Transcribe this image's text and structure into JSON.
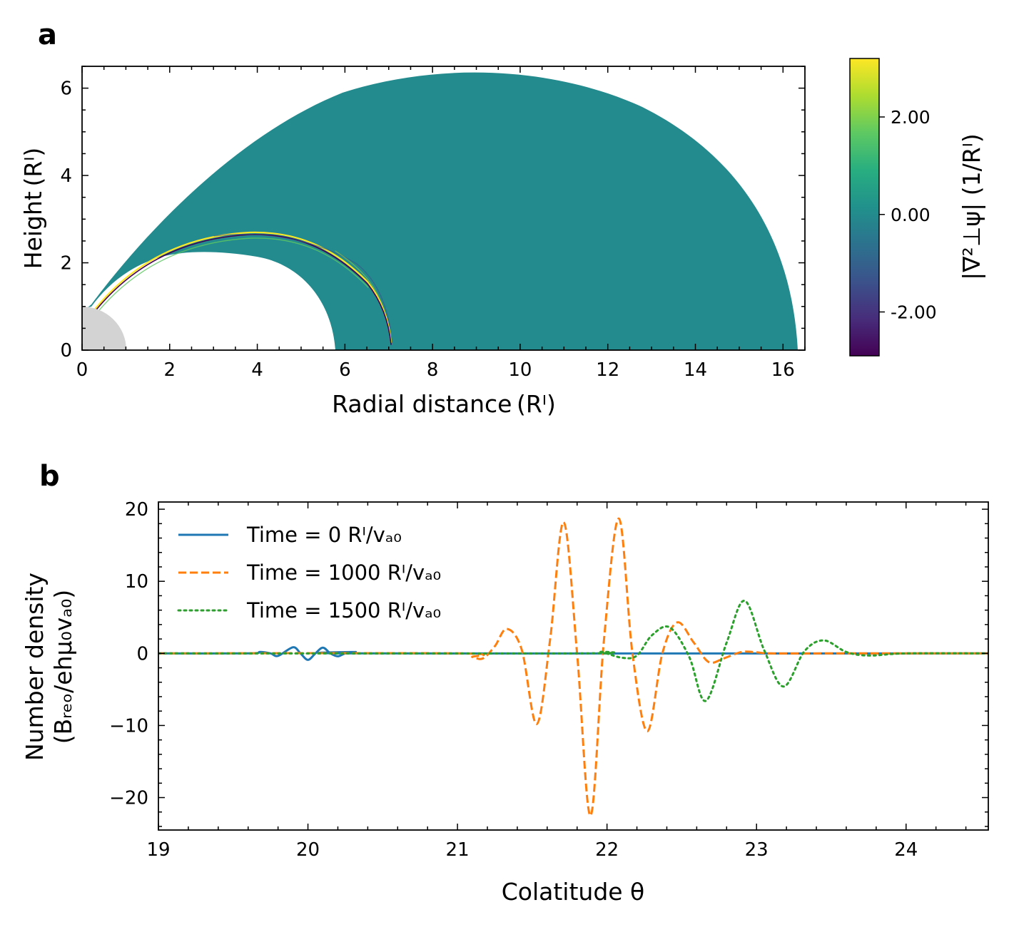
{
  "panel_a": {
    "label": "a",
    "xlabel": "Radial distance (Rᴵ)",
    "ylabel": "Height (Rᴵ)",
    "colorbar_label": "|∇²⊥ψ| (1/Rᴵ)",
    "colorbar_ticks": [
      "2.00",
      "0.00",
      "-2.00"
    ]
  },
  "panel_b": {
    "label": "b",
    "xlabel": "Colatitude θ",
    "ylabel_line1": "Number density",
    "ylabel_line2": "(Bᵣₑₒ/ehμ₀vₐ₀)"
  },
  "chart_data": [
    {
      "type": "heatmap",
      "xlim": [
        0,
        16.5
      ],
      "ylim": [
        0,
        6.5
      ],
      "x_ticks": [
        0,
        2,
        4,
        6,
        8,
        10,
        12,
        14,
        16
      ],
      "y_ticks": [
        0,
        2,
        4,
        6
      ],
      "colormap": "viridis",
      "colorbar_range": [
        -2.9,
        3.2
      ],
      "colorbar_ticks": [
        2,
        0,
        -2
      ],
      "background_value": 0.0,
      "domain_fill": "#238a8d",
      "planet_fill": "#d3d3d3",
      "grid": false
    },
    {
      "type": "line",
      "xlim": [
        19,
        24.55
      ],
      "ylim": [
        -24.5,
        21
      ],
      "x_ticks": [
        19,
        20,
        21,
        22,
        23,
        24
      ],
      "y_ticks": [
        20,
        10,
        0,
        -10,
        -20
      ],
      "grid": false,
      "legend_position": "top-left",
      "series": [
        {
          "name": "Time = 0 Rᴵ/vₐ₀",
          "color": "#1f77b4",
          "style": "solid",
          "x": [
            19.0,
            19.6,
            19.68,
            19.75,
            19.8,
            19.9,
            19.95,
            20.0,
            20.05,
            20.1,
            20.15,
            20.2,
            20.25,
            20.32,
            20.4,
            24.55
          ],
          "y": [
            0,
            0,
            0.2,
            0,
            -0.35,
            0.85,
            0,
            -0.9,
            0,
            0.8,
            0,
            -0.4,
            0,
            0.2,
            0,
            0
          ]
        },
        {
          "name": "Time = 1000 Rᴵ/vₐ₀",
          "color": "#ff7f0e",
          "style": "dashed",
          "x": [
            19.0,
            21.0,
            21.1,
            21.17,
            21.25,
            21.33,
            21.43,
            21.53,
            21.62,
            21.71,
            21.8,
            21.89,
            21.98,
            22.08,
            22.17,
            22.27,
            22.37,
            22.47,
            22.58,
            22.68,
            22.78,
            22.9,
            23.0,
            23.1,
            23.5,
            24.55
          ],
          "y": [
            0,
            0,
            -0.5,
            -0.7,
            1.0,
            3.4,
            0.5,
            -9.8,
            2.0,
            18.2,
            0,
            -22.5,
            2.0,
            18.7,
            0,
            -10.8,
            0,
            4.3,
            1.5,
            -1.2,
            -0.7,
            0.2,
            0.15,
            0,
            0,
            0
          ]
        },
        {
          "name": "Time = 1500 Rᴵ/vₐ₀",
          "color": "#2ca02c",
          "style": "dotted",
          "x": [
            19.0,
            21.8,
            21.95,
            22.1,
            22.2,
            22.3,
            22.42,
            22.55,
            22.66,
            22.8,
            22.92,
            23.05,
            23.18,
            23.32,
            23.45,
            23.6,
            23.75,
            24.0,
            24.55
          ],
          "y": [
            0,
            0,
            0.2,
            -0.6,
            -0.3,
            2.5,
            3.6,
            -0.5,
            -6.6,
            1.5,
            7.3,
            0.5,
            -4.6,
            0.3,
            1.8,
            0.2,
            -0.3,
            0,
            0
          ]
        }
      ]
    }
  ]
}
